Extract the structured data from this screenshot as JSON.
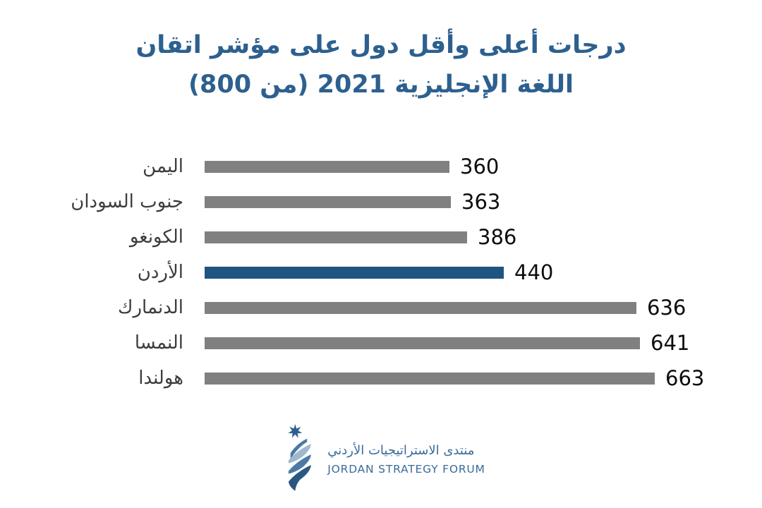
{
  "title": {
    "line1": "درجات أعلى وأقل دول على مؤشر اتقان",
    "line2": "اللغة الإنجليزية 2021 (من 800)",
    "color": "#2d608f"
  },
  "chart_data": {
    "type": "bar",
    "orientation": "horizontal",
    "title": "درجات أعلى وأقل دول على مؤشر اتقان اللغة الإنجليزية 2021 (من 800)",
    "categories": [
      "اليمن",
      "جنوب السودان",
      "الكونغو",
      "الأردن",
      "الدنمارك",
      "النمسا",
      "هولندا"
    ],
    "values": [
      360,
      363,
      386,
      440,
      636,
      641,
      663
    ],
    "highlight_index": 3,
    "xlim": [
      0,
      800
    ],
    "bar_color": "#808080",
    "highlight_color": "#205480",
    "value_label_color": "#0d0d0d",
    "category_label_color": "#3c3c3c",
    "grid": false,
    "legend": false,
    "value_label_position": "end-of-bar"
  },
  "footer": {
    "logo_arabic": "منتدى الاستراتيجيات الأردني",
    "logo_english": "JORDAN STRATEGY FORUM",
    "logo_color": "#3a6b99"
  }
}
